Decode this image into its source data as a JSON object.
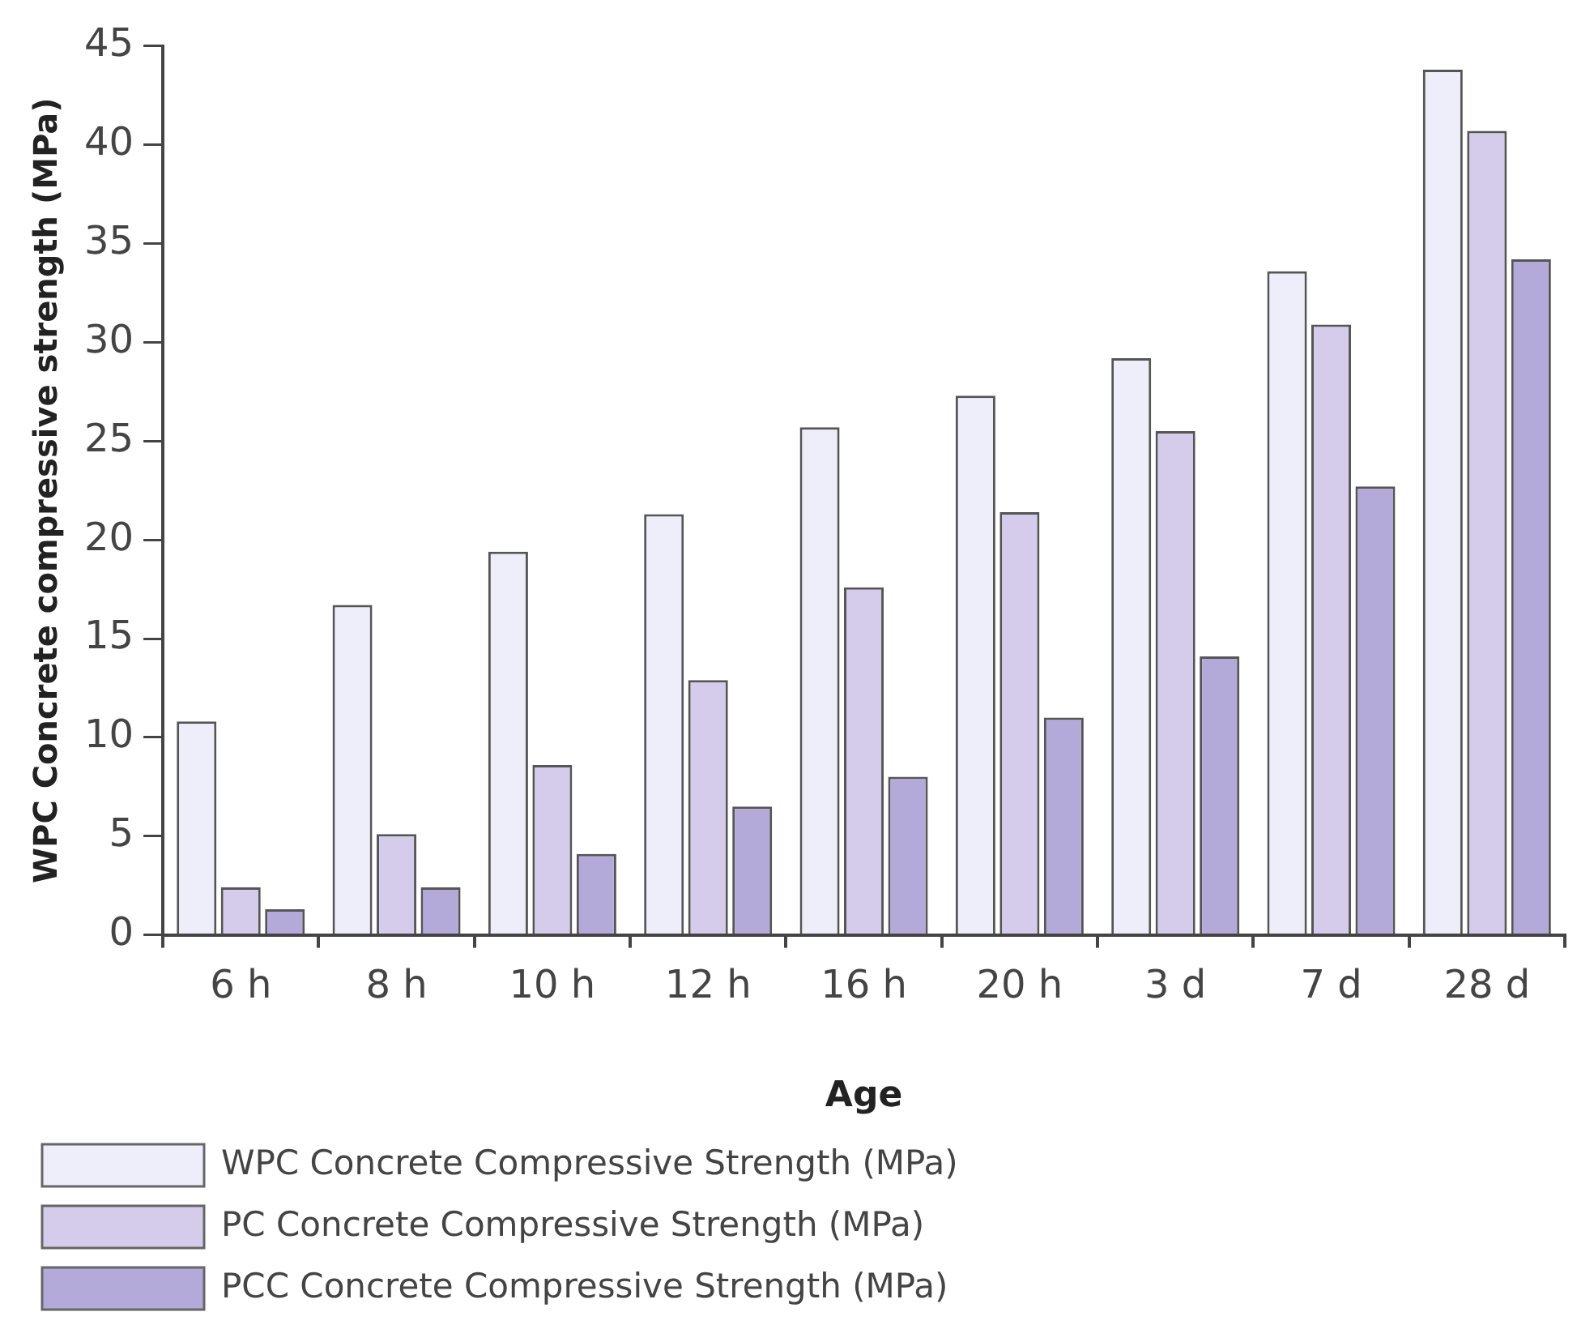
{
  "chart_data": {
    "type": "bar",
    "xlabel": "Age",
    "ylabel": "WPC Concrete compressive strength (MPa)",
    "categories": [
      "6 h",
      "8 h",
      "10 h",
      "12 h",
      "16 h",
      "20 h",
      "3 d",
      "7 d",
      "28 d"
    ],
    "series": [
      {
        "name": "WPC Concrete Compressive Strength (MPa)",
        "color": "#eeeefa",
        "values": [
          10.8,
          16.7,
          19.4,
          21.3,
          25.7,
          27.3,
          29.2,
          33.6,
          43.8
        ]
      },
      {
        "name": "PC Concrete Compressive Strength (MPa)",
        "color": "#d5cceb",
        "values": [
          2.4,
          5.1,
          8.6,
          12.9,
          17.6,
          21.4,
          25.5,
          30.9,
          40.7
        ]
      },
      {
        "name": "PCC Concrete Compressive Strength (MPa)",
        "color": "#b4aada",
        "values": [
          1.3,
          2.4,
          4.1,
          6.5,
          8.0,
          11.0,
          14.1,
          22.7,
          34.2
        ]
      }
    ],
    "ylim": [
      0,
      45
    ],
    "yticks": [
      0,
      5,
      10,
      15,
      20,
      25,
      30,
      35,
      40,
      45
    ],
    "grid": false,
    "legend": "bottom left"
  }
}
